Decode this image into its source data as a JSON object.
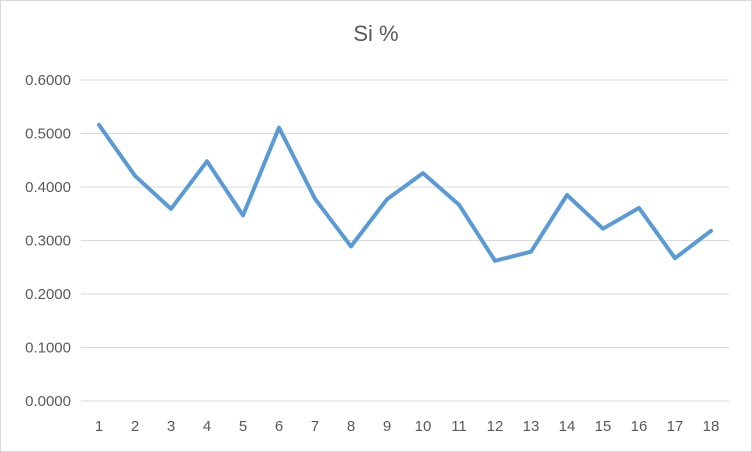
{
  "chart_data": {
    "type": "line",
    "title": "Si %",
    "xlabel": "",
    "ylabel": "",
    "categories": [
      "1",
      "2",
      "3",
      "4",
      "5",
      "6",
      "7",
      "8",
      "9",
      "10",
      "11",
      "12",
      "13",
      "14",
      "15",
      "16",
      "17",
      "18"
    ],
    "series": [
      {
        "values": [
          0.516,
          0.421,
          0.359,
          0.448,
          0.347,
          0.511,
          0.378,
          0.289,
          0.377,
          0.426,
          0.367,
          0.262,
          0.279,
          0.385,
          0.322,
          0.361,
          0.267,
          0.318
        ],
        "color": "#5b9bd5"
      }
    ],
    "ylim": [
      0,
      0.6
    ],
    "yticks": [
      "0.0000",
      "0.1000",
      "0.2000",
      "0.3000",
      "0.4000",
      "0.5000",
      "0.6000"
    ],
    "grid": true,
    "legend": "none",
    "gridline_color": "#d9d9d9"
  }
}
